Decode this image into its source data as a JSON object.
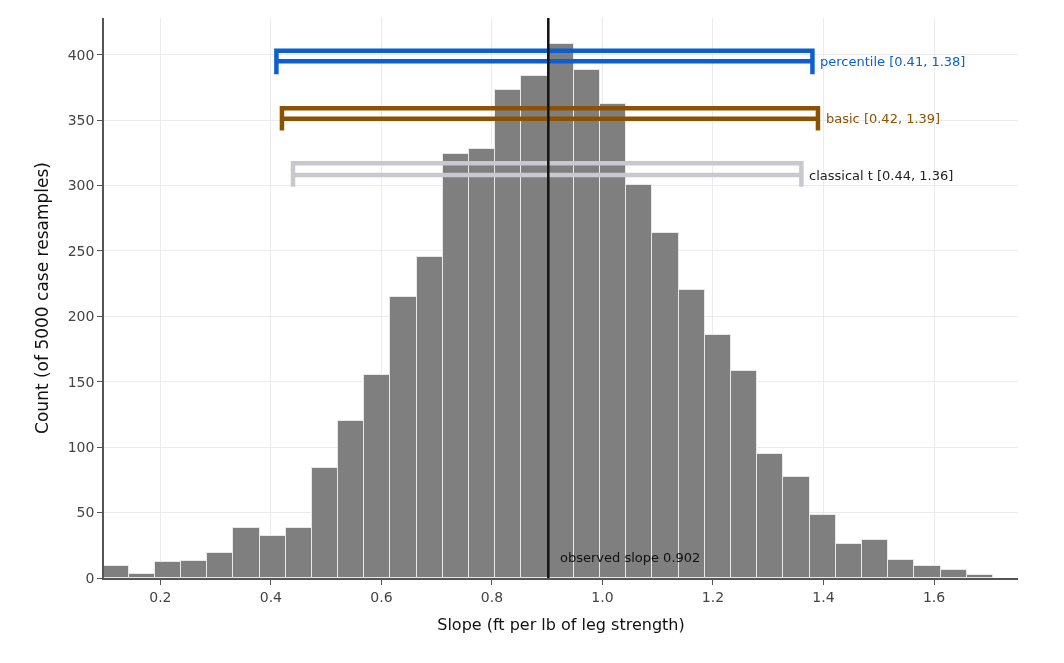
{
  "chart_data": {
    "type": "histogram",
    "xlabel": "Slope (ft per lb of leg strength)",
    "ylabel": "Count (of 5000 case resamples)",
    "bins": [
      0.095,
      0.1424,
      0.1898,
      0.2372,
      0.2846,
      0.332,
      0.3794,
      0.4268,
      0.4742,
      0.5216,
      0.569,
      0.6164,
      0.6638,
      0.7112,
      0.7586,
      0.806,
      0.8534,
      0.9008,
      0.9482,
      0.9956,
      1.043,
      1.0904,
      1.1378,
      1.1852,
      1.2326,
      1.28,
      1.3274,
      1.3748,
      1.4222,
      1.4696,
      1.517,
      1.5644,
      1.6118,
      1.6592,
      1.7066
    ],
    "values": [
      9,
      3,
      12,
      13,
      19,
      38,
      32,
      38,
      84,
      120,
      155,
      215,
      245,
      324,
      328,
      373,
      384,
      408,
      388,
      362,
      300,
      264,
      220,
      186,
      158,
      95,
      77,
      48,
      26,
      29,
      14,
      9,
      6,
      2
    ],
    "color": "#7f7f7f",
    "xlim": [
      0.098,
      1.752
    ],
    "xticks": [
      0.2,
      0.4,
      0.6,
      0.8,
      {
        "value": 1.0,
        "label": "1.0"
      },
      1.2,
      1.4,
      1.6
    ],
    "ylim": [
      0,
      428
    ],
    "yticks": [
      0,
      50,
      100,
      150,
      200,
      250,
      300,
      350,
      400
    ],
    "grid": true,
    "ref_lines": [
      {
        "axis": "x",
        "value": 0.902,
        "label": "observed slope 0.902",
        "color": "#111111"
      }
    ],
    "series": [
      {
        "type": "line",
        "name": "percentile [0.41, 1.38]",
        "color": "#0b5fce",
        "x": [
          0.41,
          0.41,
          1.38,
          1.38,
          1.38,
          0.41
        ],
        "values": [
          385,
          403,
          403,
          385,
          395,
          395
        ]
      },
      {
        "type": "line",
        "name": "basic [0.42, 1.39]",
        "color": "#8b5200",
        "x": [
          0.42,
          0.42,
          1.39,
          1.39,
          1.39,
          0.42
        ],
        "values": [
          342,
          359,
          359,
          342,
          351,
          351
        ]
      },
      {
        "type": "line",
        "name": "classical t [0.44, 1.36]",
        "color": "#c8c8ce",
        "x": [
          0.44,
          0.44,
          1.36,
          1.36,
          1.36,
          0.44
        ],
        "values": [
          299,
          317,
          317,
          299,
          308,
          308
        ]
      }
    ]
  }
}
